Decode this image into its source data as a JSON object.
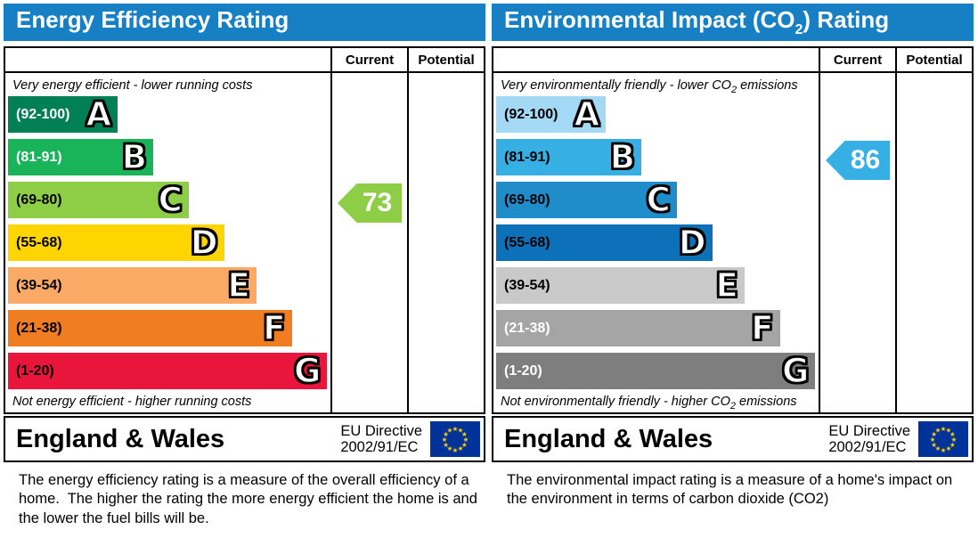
{
  "colors": {
    "header_bg": "#1780c4",
    "header_text": "#ffffff",
    "border": "#000000",
    "eu_flag_bg": "#003399",
    "eu_flag_stars": "#ffcc00",
    "current_arrow_left": "#8dce46",
    "current_arrow_right": "#36b0e4"
  },
  "panels": [
    {
      "title": {
        "pre": "Energy Efficiency Rating",
        "sub": "",
        "post": ""
      },
      "columns": {
        "current": "Current",
        "potential": "Potential"
      },
      "top_note": {
        "pre": "Very energy efficient - lower running costs",
        "sub": "",
        "post": ""
      },
      "bottom_note": {
        "pre": "Not energy efficient - higher running costs",
        "sub": "",
        "post": ""
      },
      "bands": [
        {
          "letter": "A",
          "range": "(92-100)",
          "color": "#008054",
          "width_pct": 34,
          "label_color": "#ffffff"
        },
        {
          "letter": "B",
          "range": "(81-91)",
          "color": "#19b459",
          "width_pct": 45,
          "label_color": "#ffffff"
        },
        {
          "letter": "C",
          "range": "(69-80)",
          "color": "#8dce46",
          "width_pct": 56,
          "label_color": "#000000"
        },
        {
          "letter": "D",
          "range": "(55-68)",
          "color": "#ffd500",
          "width_pct": 67,
          "label_color": "#000000"
        },
        {
          "letter": "E",
          "range": "(39-54)",
          "color": "#fbaa65",
          "width_pct": 77,
          "label_color": "#000000"
        },
        {
          "letter": "F",
          "range": "(21-38)",
          "color": "#f07d22",
          "width_pct": 88,
          "label_color": "#000000"
        },
        {
          "letter": "G",
          "range": "(1-20)",
          "color": "#e9153b",
          "width_pct": 99,
          "label_color": "#000000"
        }
      ],
      "current": {
        "value": "73",
        "band_index": 2,
        "color": "#8dce46"
      },
      "potential": null,
      "footer": {
        "region": "England & Wales",
        "directive_line1": "EU Directive",
        "directive_line2": "2002/91/EC"
      },
      "description": "The energy efficiency rating is a measure of the overall efficiency of a home.  The higher the rating the more energy efficient the home is and the lower the fuel bills will be."
    },
    {
      "title": {
        "pre": "Environmental Impact (CO",
        "sub": "2",
        "post": ") Rating"
      },
      "columns": {
        "current": "Current",
        "potential": "Potential"
      },
      "top_note": {
        "pre": "Very environmentally friendly - lower CO",
        "sub": "2",
        "post": " emissions"
      },
      "bottom_note": {
        "pre": "Not environmentally friendly - higher CO",
        "sub": "2",
        "post": " emissions"
      },
      "bands": [
        {
          "letter": "A",
          "range": "(92-100)",
          "color": "#a3d9f5",
          "width_pct": 34,
          "label_color": "#000000"
        },
        {
          "letter": "B",
          "range": "(81-91)",
          "color": "#36b0e4",
          "width_pct": 45,
          "label_color": "#000000"
        },
        {
          "letter": "C",
          "range": "(69-80)",
          "color": "#1e8dc9",
          "width_pct": 56,
          "label_color": "#000000"
        },
        {
          "letter": "D",
          "range": "(55-68)",
          "color": "#0d71b9",
          "width_pct": 67,
          "label_color": "#000000"
        },
        {
          "letter": "E",
          "range": "(39-54)",
          "color": "#c9c9c9",
          "width_pct": 77,
          "label_color": "#000000"
        },
        {
          "letter": "F",
          "range": "(21-38)",
          "color": "#a5a5a5",
          "width_pct": 88,
          "label_color": "#ffffff"
        },
        {
          "letter": "G",
          "range": "(1-20)",
          "color": "#7e7e7e",
          "width_pct": 99,
          "label_color": "#ffffff"
        }
      ],
      "current": {
        "value": "86",
        "band_index": 1,
        "color": "#36b0e4"
      },
      "potential": null,
      "footer": {
        "region": "England & Wales",
        "directive_line1": "EU Directive",
        "directive_line2": "2002/91/EC"
      },
      "description": "The environmental impact rating is a measure of a home's impact on the environment in terms of carbon dioxide (CO2)"
    }
  ],
  "chart_data": [
    {
      "type": "bar",
      "title": "Energy Efficiency Rating",
      "categories": [
        "A",
        "B",
        "C",
        "D",
        "E",
        "F",
        "G"
      ],
      "tick_labels": [
        "(92-100)",
        "(81-91)",
        "(69-80)",
        "(55-68)",
        "(39-54)",
        "(21-38)",
        "(1-20)"
      ],
      "band_ranges": [
        [
          92,
          100
        ],
        [
          81,
          91
        ],
        [
          69,
          80
        ],
        [
          55,
          68
        ],
        [
          39,
          54
        ],
        [
          21,
          38
        ],
        [
          1,
          20
        ]
      ],
      "band_relative_widths_pct": [
        34,
        45,
        56,
        67,
        77,
        88,
        99
      ],
      "series": [
        {
          "name": "Current",
          "values": [
            73
          ],
          "band": "C"
        },
        {
          "name": "Potential",
          "values": [],
          "band": null
        }
      ],
      "xlabel": "",
      "ylabel": "",
      "ylim": [
        1,
        100
      ],
      "annotations": [
        "Very energy efficient - lower running costs",
        "Not energy efficient - higher running costs"
      ],
      "legend_position": "top-right-columns"
    },
    {
      "type": "bar",
      "title": "Environmental Impact (CO2) Rating",
      "categories": [
        "A",
        "B",
        "C",
        "D",
        "E",
        "F",
        "G"
      ],
      "tick_labels": [
        "(92-100)",
        "(81-91)",
        "(69-80)",
        "(55-68)",
        "(39-54)",
        "(21-38)",
        "(1-20)"
      ],
      "band_ranges": [
        [
          92,
          100
        ],
        [
          81,
          91
        ],
        [
          69,
          80
        ],
        [
          55,
          68
        ],
        [
          39,
          54
        ],
        [
          21,
          38
        ],
        [
          1,
          20
        ]
      ],
      "band_relative_widths_pct": [
        34,
        45,
        56,
        67,
        77,
        88,
        99
      ],
      "series": [
        {
          "name": "Current",
          "values": [
            86
          ],
          "band": "B"
        },
        {
          "name": "Potential",
          "values": [],
          "band": null
        }
      ],
      "xlabel": "",
      "ylabel": "",
      "ylim": [
        1,
        100
      ],
      "annotations": [
        "Very environmentally friendly - lower CO2 emissions",
        "Not environmentally friendly - higher CO2 emissions"
      ],
      "legend_position": "top-right-columns"
    }
  ]
}
